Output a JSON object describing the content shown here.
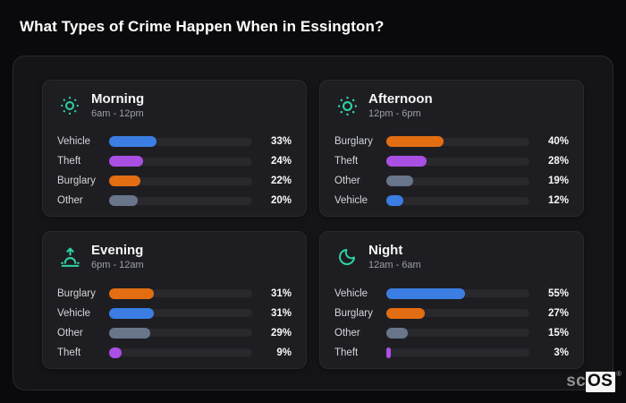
{
  "page_title": "What Types of Crime Happen When in Essington?",
  "colors": {
    "vehicle": "#3b7de2",
    "theft": "#aa4fe3",
    "burglary": "#e26d12",
    "other": "#68758a",
    "accent_teal": "#2ed3a2",
    "bar_track": "#28282d",
    "card_bg": "#1e1e22",
    "panel_bg": "#151518",
    "page_bg": "#0a0a0c"
  },
  "cards": [
    {
      "id": "morning",
      "title": "Morning",
      "subtitle": "6am - 12pm",
      "icon": "sun-dim-icon",
      "rows": [
        {
          "label": "Vehicle",
          "value": 33,
          "pct": "33%",
          "color": "#3b7de2"
        },
        {
          "label": "Theft",
          "value": 24,
          "pct": "24%",
          "color": "#aa4fe3"
        },
        {
          "label": "Burglary",
          "value": 22,
          "pct": "22%",
          "color": "#e26d12"
        },
        {
          "label": "Other",
          "value": 20,
          "pct": "20%",
          "color": "#68758a"
        }
      ]
    },
    {
      "id": "afternoon",
      "title": "Afternoon",
      "subtitle": "12pm - 6pm",
      "icon": "sun-icon",
      "rows": [
        {
          "label": "Burglary",
          "value": 40,
          "pct": "40%",
          "color": "#e26d12"
        },
        {
          "label": "Theft",
          "value": 28,
          "pct": "28%",
          "color": "#aa4fe3"
        },
        {
          "label": "Other",
          "value": 19,
          "pct": "19%",
          "color": "#68758a"
        },
        {
          "label": "Vehicle",
          "value": 12,
          "pct": "12%",
          "color": "#3b7de2"
        }
      ]
    },
    {
      "id": "evening",
      "title": "Evening",
      "subtitle": "6pm - 12am",
      "icon": "sunset-icon",
      "rows": [
        {
          "label": "Burglary",
          "value": 31,
          "pct": "31%",
          "color": "#e26d12"
        },
        {
          "label": "Vehicle",
          "value": 31,
          "pct": "31%",
          "color": "#3b7de2"
        },
        {
          "label": "Other",
          "value": 29,
          "pct": "29%",
          "color": "#68758a"
        },
        {
          "label": "Theft",
          "value": 9,
          "pct": "9%",
          "color": "#aa4fe3"
        }
      ]
    },
    {
      "id": "night",
      "title": "Night",
      "subtitle": "12am - 6am",
      "icon": "moon-icon",
      "rows": [
        {
          "label": "Vehicle",
          "value": 55,
          "pct": "55%",
          "color": "#3b7de2"
        },
        {
          "label": "Burglary",
          "value": 27,
          "pct": "27%",
          "color": "#e26d12"
        },
        {
          "label": "Other",
          "value": 15,
          "pct": "15%",
          "color": "#68758a"
        },
        {
          "label": "Theft",
          "value": 3,
          "pct": "3%",
          "color": "#aa4fe3"
        }
      ]
    }
  ],
  "watermark": {
    "prefix": "sc",
    "suffix": "OS",
    "reg": "®"
  },
  "chart_data": [
    {
      "type": "bar",
      "orientation": "horizontal",
      "title": "Morning",
      "subtitle": "6am - 12pm",
      "categories": [
        "Vehicle",
        "Theft",
        "Burglary",
        "Other"
      ],
      "values": [
        33,
        24,
        22,
        20
      ],
      "unit": "%",
      "xlim": [
        0,
        100
      ],
      "grid": false,
      "legend": false
    },
    {
      "type": "bar",
      "orientation": "horizontal",
      "title": "Afternoon",
      "subtitle": "12pm - 6pm",
      "categories": [
        "Burglary",
        "Theft",
        "Other",
        "Vehicle"
      ],
      "values": [
        40,
        28,
        19,
        12
      ],
      "unit": "%",
      "xlim": [
        0,
        100
      ],
      "grid": false,
      "legend": false
    },
    {
      "type": "bar",
      "orientation": "horizontal",
      "title": "Evening",
      "subtitle": "6pm - 12am",
      "categories": [
        "Burglary",
        "Vehicle",
        "Other",
        "Theft"
      ],
      "values": [
        31,
        31,
        29,
        9
      ],
      "unit": "%",
      "xlim": [
        0,
        100
      ],
      "grid": false,
      "legend": false
    },
    {
      "type": "bar",
      "orientation": "horizontal",
      "title": "Night",
      "subtitle": "12am - 6am",
      "categories": [
        "Vehicle",
        "Burglary",
        "Other",
        "Theft"
      ],
      "values": [
        55,
        27,
        15,
        3
      ],
      "unit": "%",
      "xlim": [
        0,
        100
      ],
      "grid": false,
      "legend": false
    }
  ]
}
